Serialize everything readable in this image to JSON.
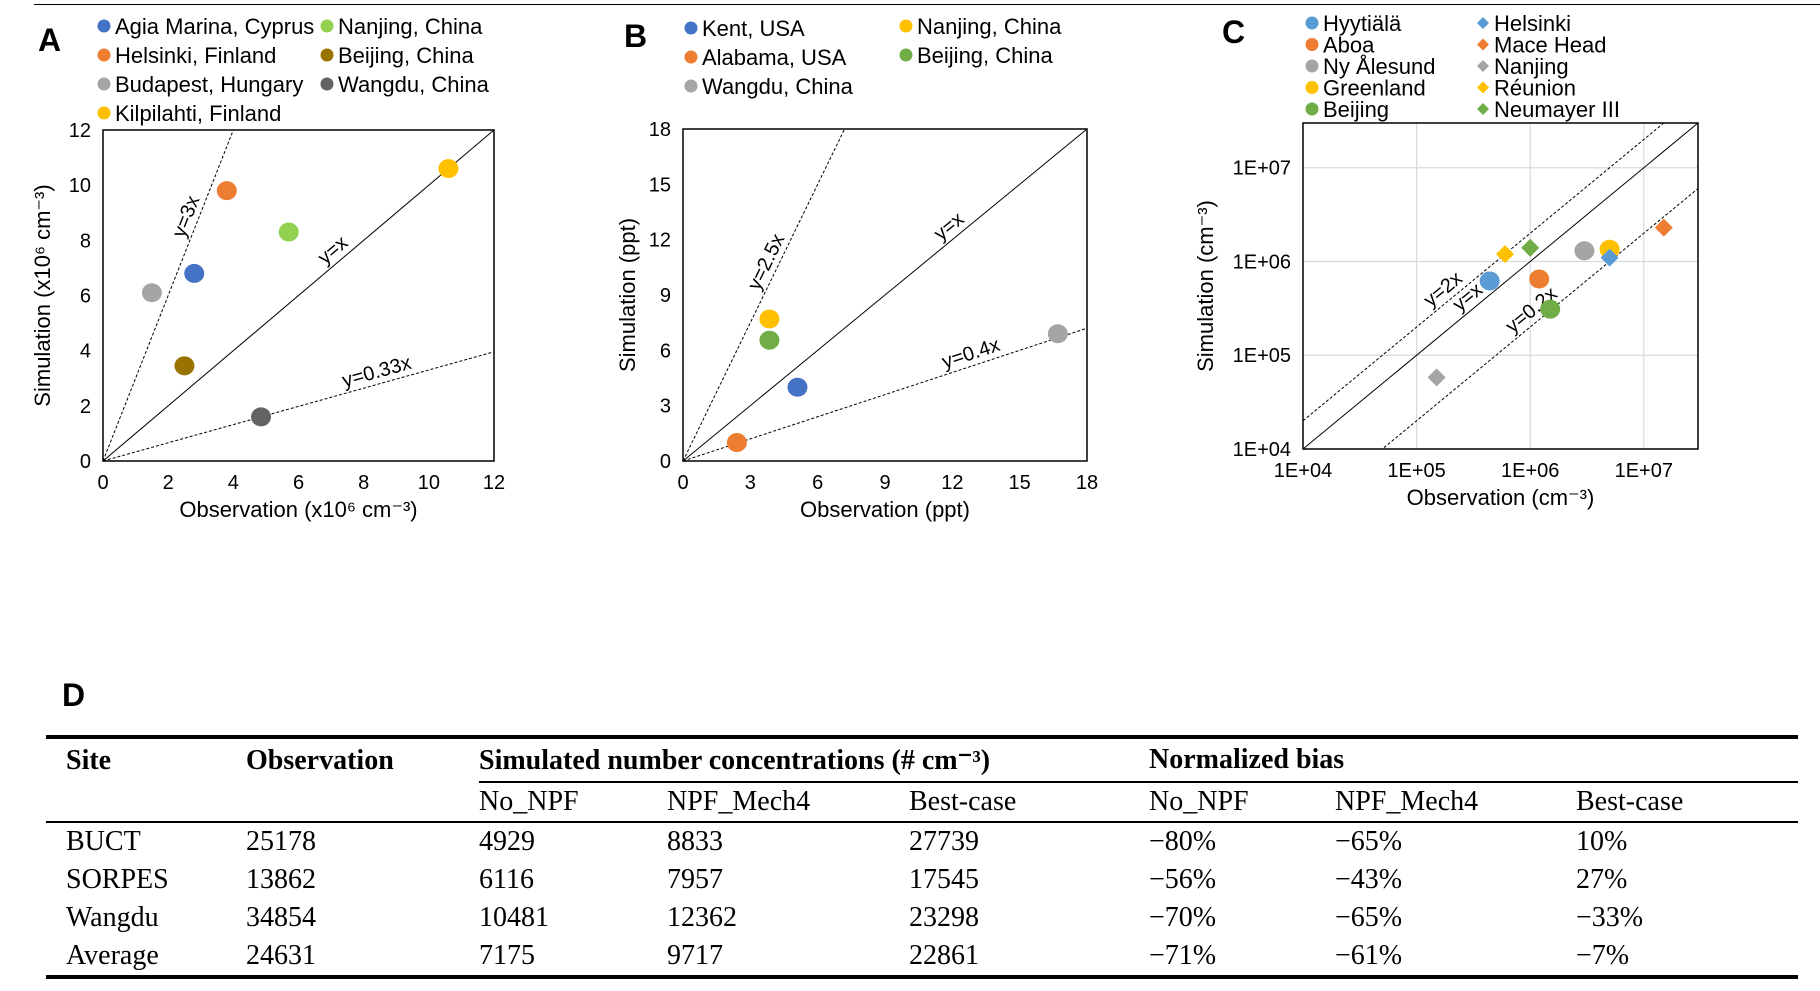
{
  "panels": {
    "a": "A",
    "b": "B",
    "c": "C",
    "d": "D"
  },
  "chart_data": [
    {
      "type": "scatter",
      "panel": "A",
      "xlabel": "Observation (x10⁶ cm⁻³)",
      "ylabel": "Simulation (x10⁶ cm⁻³)",
      "xlim": [
        0,
        12
      ],
      "ylim": [
        0,
        12
      ],
      "scale": "linear",
      "xticks": [
        0,
        2,
        4,
        6,
        8,
        10,
        12
      ],
      "xtick_labels": [
        "0",
        "2",
        "4",
        "6",
        "8",
        "10",
        "12"
      ],
      "yticks": [
        0,
        2,
        4,
        6,
        8,
        10,
        12
      ],
      "ytick_labels": [
        "0",
        "2",
        "4",
        "6",
        "8",
        "10",
        "12"
      ],
      "grid": false,
      "reference_lines": [
        {
          "label": "y=3x",
          "slope": 3,
          "style": "dashed"
        },
        {
          "label": "y=x",
          "slope": 1,
          "style": "solid"
        },
        {
          "label": "y=0.33x",
          "slope": 0.33,
          "style": "dashed"
        }
      ],
      "series": [
        {
          "name": "Agia Marina, Cyprus",
          "color": "#4472c4",
          "marker": "circle",
          "x": 2.8,
          "y": 6.8
        },
        {
          "name": "Helsinki, Finland",
          "color": "#ed7d31",
          "marker": "circle",
          "x": 3.8,
          "y": 9.8
        },
        {
          "name": "Budapest, Hungary",
          "color": "#a5a5a5",
          "marker": "circle",
          "x": 1.5,
          "y": 6.1
        },
        {
          "name": "Kilpilahti, Finland",
          "color": "#ffc000",
          "marker": "circle",
          "x": 10.6,
          "y": 10.6
        },
        {
          "name": "Nanjing, China",
          "color": "#92d050",
          "marker": "circle",
          "x": 5.7,
          "y": 8.3
        },
        {
          "name": "Beijing, China",
          "color": "#997300",
          "marker": "circle",
          "x": 2.5,
          "y": 3.45
        },
        {
          "name": "Wangdu, China",
          "color": "#636363",
          "marker": "circle",
          "x": 4.85,
          "y": 1.6
        }
      ]
    },
    {
      "type": "scatter",
      "panel": "B",
      "xlabel": "Observation (ppt)",
      "ylabel": "Simulation (ppt)",
      "xlim": [
        0,
        18
      ],
      "ylim": [
        0,
        18
      ],
      "scale": "linear",
      "xticks": [
        0,
        3,
        6,
        9,
        12,
        15,
        18
      ],
      "xtick_labels": [
        "0",
        "3",
        "6",
        "9",
        "12",
        "15",
        "18"
      ],
      "yticks": [
        0,
        3,
        6,
        9,
        12,
        15,
        18
      ],
      "ytick_labels": [
        "0",
        "3",
        "6",
        "9",
        "12",
        "15",
        "18"
      ],
      "grid": false,
      "reference_lines": [
        {
          "label": "y=2.5x",
          "slope": 2.5,
          "style": "dashed"
        },
        {
          "label": "y=x",
          "slope": 1,
          "style": "solid"
        },
        {
          "label": "y=0.4x",
          "slope": 0.4,
          "style": "dashed"
        }
      ],
      "series": [
        {
          "name": "Kent, USA",
          "color": "#4472c4",
          "marker": "circle",
          "x": 5.1,
          "y": 4.0
        },
        {
          "name": "Alabama, USA",
          "color": "#ed7d31",
          "marker": "circle",
          "x": 2.4,
          "y": 1.0
        },
        {
          "name": "Wangdu, China",
          "color": "#a5a5a5",
          "marker": "circle",
          "x": 16.7,
          "y": 6.9
        },
        {
          "name": "Nanjing, China",
          "color": "#ffc000",
          "marker": "circle",
          "x": 3.85,
          "y": 7.7
        },
        {
          "name": "Beijing, China",
          "color": "#70ad47",
          "marker": "circle",
          "x": 3.85,
          "y": 6.55
        }
      ]
    },
    {
      "type": "scatter",
      "panel": "C",
      "xlabel": "Observation (cm⁻³)",
      "ylabel": "Simulation (cm⁻³)",
      "xlim": [
        10000,
        30000000
      ],
      "ylim": [
        10000,
        30000000
      ],
      "scale": "log",
      "xticks": [
        10000,
        100000,
        1000000,
        10000000
      ],
      "xtick_labels": [
        "1E+04",
        "1E+05",
        "1E+06",
        "1E+07"
      ],
      "yticks": [
        10000,
        100000,
        1000000,
        10000000
      ],
      "ytick_labels": [
        "1E+04",
        "1E+05",
        "1E+06",
        "1E+07"
      ],
      "grid": true,
      "reference_lines": [
        {
          "label": "y=2x",
          "slope": 2,
          "style": "dashed"
        },
        {
          "label": "y=x",
          "slope": 1,
          "style": "solid"
        },
        {
          "label": "y=0.2x",
          "slope": 0.2,
          "style": "dashed"
        }
      ],
      "series": [
        {
          "name": "Hyytiälä",
          "color": "#5b9bd5",
          "marker": "circle",
          "x": 440000,
          "y": 620000
        },
        {
          "name": "Aboa",
          "color": "#ed7d31",
          "marker": "circle",
          "x": 1200000,
          "y": 650000
        },
        {
          "name": "Ny Ålesund",
          "color": "#a5a5a5",
          "marker": "circle",
          "x": 3000000,
          "y": 1300000
        },
        {
          "name": "Greenland",
          "color": "#ffc000",
          "marker": "circle",
          "x": 5000000,
          "y": 1350000
        },
        {
          "name": "Beijing",
          "color": "#70ad47",
          "marker": "circle",
          "x": 1500000,
          "y": 310000
        },
        {
          "name": "Helsinki",
          "color": "#5b9bd5",
          "marker": "diamond",
          "x": 5000000,
          "y": 1100000
        },
        {
          "name": "Mace Head",
          "color": "#ed7d31",
          "marker": "diamond",
          "x": 15000000,
          "y": 2300000
        },
        {
          "name": "Nanjing",
          "color": "#a5a5a5",
          "marker": "diamond",
          "x": 150000,
          "y": 58000
        },
        {
          "name": "Réunion",
          "color": "#ffc000",
          "marker": "diamond",
          "x": 600000,
          "y": 1200000
        },
        {
          "name": "Neumayer III",
          "color": "#70ad47",
          "marker": "diamond",
          "x": 1000000,
          "y": 1400000
        }
      ]
    }
  ],
  "table": {
    "headers": {
      "site": "Site",
      "observation": "Observation",
      "simulated_group": "Simulated number concentrations (# cm⁻³)",
      "bias_group": "Normalized bias",
      "sub": [
        "No_NPF",
        "NPF_Mech4",
        "Best-case",
        "No_NPF",
        "NPF_Mech4",
        "Best-case"
      ]
    },
    "rows": [
      [
        "BUCT",
        "25178",
        "4929",
        "8833",
        "27739",
        "−80%",
        "−65%",
        "10%"
      ],
      [
        "SORPES",
        "13862",
        "6116",
        "7957",
        "17545",
        "−56%",
        "−43%",
        "27%"
      ],
      [
        "Wangdu",
        "34854",
        "10481",
        "12362",
        "23298",
        "−70%",
        "−65%",
        "−33%"
      ],
      [
        "Average",
        "24631",
        "7175",
        "9717",
        "22861",
        "−71%",
        "−61%",
        "−7%"
      ]
    ]
  }
}
